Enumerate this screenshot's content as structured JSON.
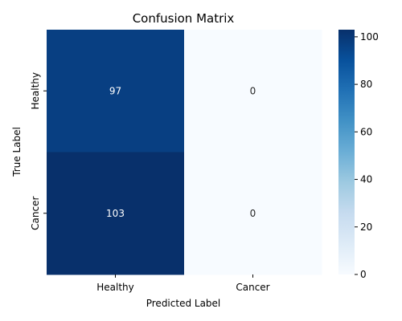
{
  "chart_data": {
    "type": "heatmap",
    "title": "Confusion Matrix",
    "xlabel": "Predicted Label",
    "ylabel": "True Label",
    "x_categories": [
      "Healthy",
      "Cancer"
    ],
    "y_categories": [
      "Healthy",
      "Cancer"
    ],
    "values": [
      [
        97,
        0
      ],
      [
        103,
        0
      ]
    ],
    "colorbar": {
      "min": 0,
      "max": 103,
      "ticks": [
        0,
        20,
        40,
        60,
        80,
        100
      ]
    },
    "colormap": "Blues",
    "colors": {
      "low": "#f7fbff",
      "high": "#08306b"
    }
  }
}
